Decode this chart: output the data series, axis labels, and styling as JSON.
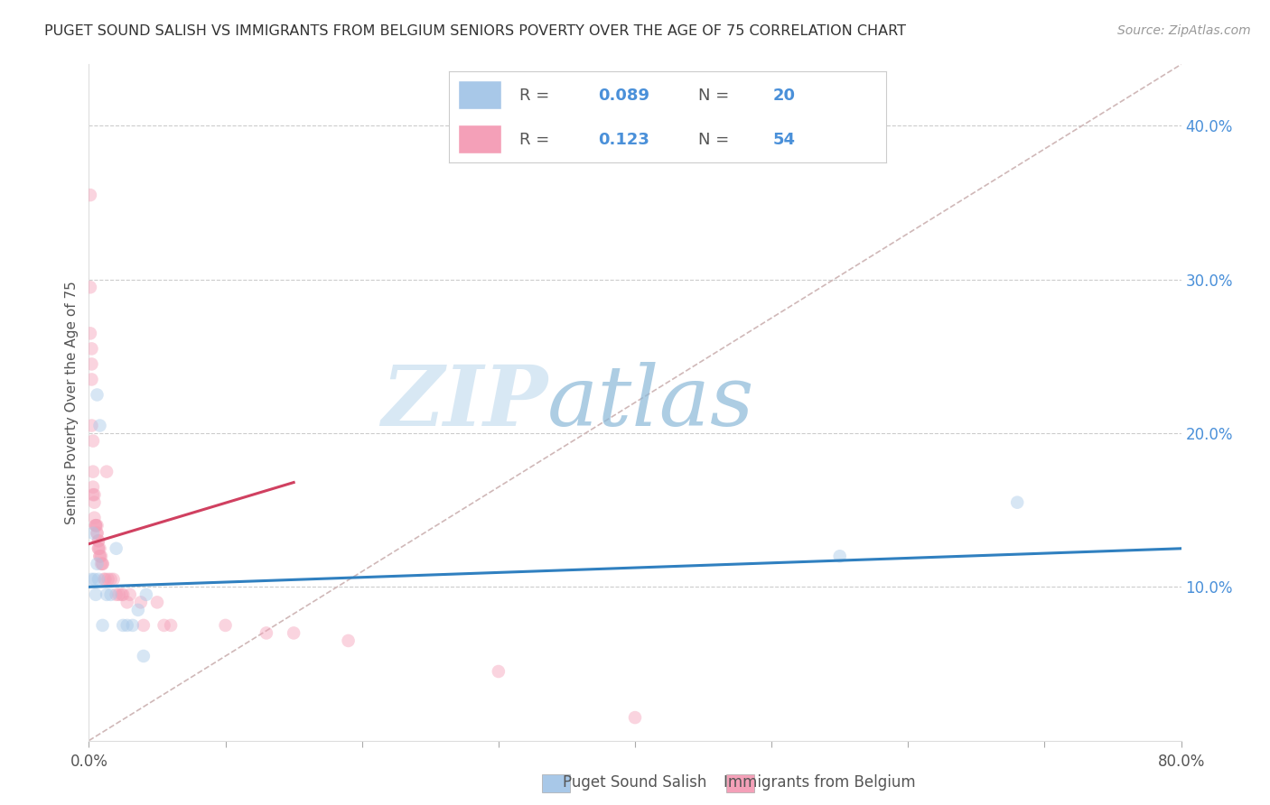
{
  "title": "PUGET SOUND SALISH VS IMMIGRANTS FROM BELGIUM SENIORS POVERTY OVER THE AGE OF 75 CORRELATION CHART",
  "source": "Source: ZipAtlas.com",
  "ylabel": "Seniors Poverty Over the Age of 75",
  "ytick_labels": [
    "10.0%",
    "20.0%",
    "30.0%",
    "40.0%"
  ],
  "ytick_values": [
    0.1,
    0.2,
    0.3,
    0.4
  ],
  "xlim": [
    0.0,
    0.8
  ],
  "ylim": [
    0.0,
    0.44
  ],
  "background_color": "#ffffff",
  "grid_color": "#cccccc",
  "title_color": "#333333",
  "source_color": "#999999",
  "legend_label_blue": "Puget Sound Salish",
  "legend_label_pink": "Immigrants from Belgium",
  "legend_r_blue": "0.089",
  "legend_n_blue": "20",
  "legend_r_pink": "0.123",
  "legend_n_pink": "54",
  "right_axis_color": "#4a90d9",
  "watermark_zip": "ZIP",
  "watermark_atlas": "atlas",
  "blue_scatter_x": [
    0.002,
    0.003,
    0.004,
    0.005,
    0.006,
    0.006,
    0.007,
    0.008,
    0.01,
    0.013,
    0.016,
    0.02,
    0.025,
    0.028,
    0.032,
    0.036,
    0.04,
    0.042,
    0.55,
    0.68
  ],
  "blue_scatter_y": [
    0.105,
    0.135,
    0.105,
    0.095,
    0.115,
    0.225,
    0.105,
    0.205,
    0.075,
    0.095,
    0.095,
    0.125,
    0.075,
    0.075,
    0.075,
    0.085,
    0.055,
    0.095,
    0.12,
    0.155
  ],
  "pink_scatter_x": [
    0.001,
    0.001,
    0.001,
    0.002,
    0.002,
    0.002,
    0.002,
    0.003,
    0.003,
    0.003,
    0.003,
    0.004,
    0.004,
    0.004,
    0.005,
    0.005,
    0.005,
    0.006,
    0.006,
    0.006,
    0.007,
    0.007,
    0.007,
    0.007,
    0.008,
    0.008,
    0.008,
    0.009,
    0.009,
    0.01,
    0.01,
    0.011,
    0.012,
    0.013,
    0.014,
    0.016,
    0.018,
    0.02,
    0.022,
    0.024,
    0.025,
    0.028,
    0.03,
    0.038,
    0.04,
    0.05,
    0.055,
    0.06,
    0.1,
    0.13,
    0.15,
    0.19,
    0.3,
    0.4
  ],
  "pink_scatter_y": [
    0.355,
    0.295,
    0.265,
    0.255,
    0.245,
    0.235,
    0.205,
    0.195,
    0.175,
    0.165,
    0.16,
    0.16,
    0.155,
    0.145,
    0.14,
    0.14,
    0.14,
    0.14,
    0.135,
    0.135,
    0.13,
    0.13,
    0.125,
    0.125,
    0.125,
    0.12,
    0.12,
    0.12,
    0.115,
    0.115,
    0.115,
    0.105,
    0.105,
    0.175,
    0.105,
    0.105,
    0.105,
    0.095,
    0.095,
    0.095,
    0.095,
    0.09,
    0.095,
    0.09,
    0.075,
    0.09,
    0.075,
    0.075,
    0.075,
    0.07,
    0.07,
    0.065,
    0.045,
    0.015
  ],
  "blue_line_x": [
    0.0,
    0.8
  ],
  "blue_line_y": [
    0.1,
    0.125
  ],
  "pink_line_x": [
    0.0,
    0.15
  ],
  "pink_line_y": [
    0.128,
    0.168
  ],
  "diag_line_x": [
    0.0,
    0.8
  ],
  "diag_line_y": [
    0.0,
    0.44
  ],
  "scatter_size": 110,
  "scatter_alpha": 0.45,
  "blue_color": "#a8c8e8",
  "pink_color": "#f4a0b8",
  "blue_line_color": "#3080c0",
  "pink_line_color": "#d04060",
  "diag_color": "#d0b8b8",
  "title_fontsize": 11.5,
  "axis_label_fontsize": 11,
  "tick_fontsize": 12,
  "legend_fontsize": 14,
  "source_fontsize": 10
}
